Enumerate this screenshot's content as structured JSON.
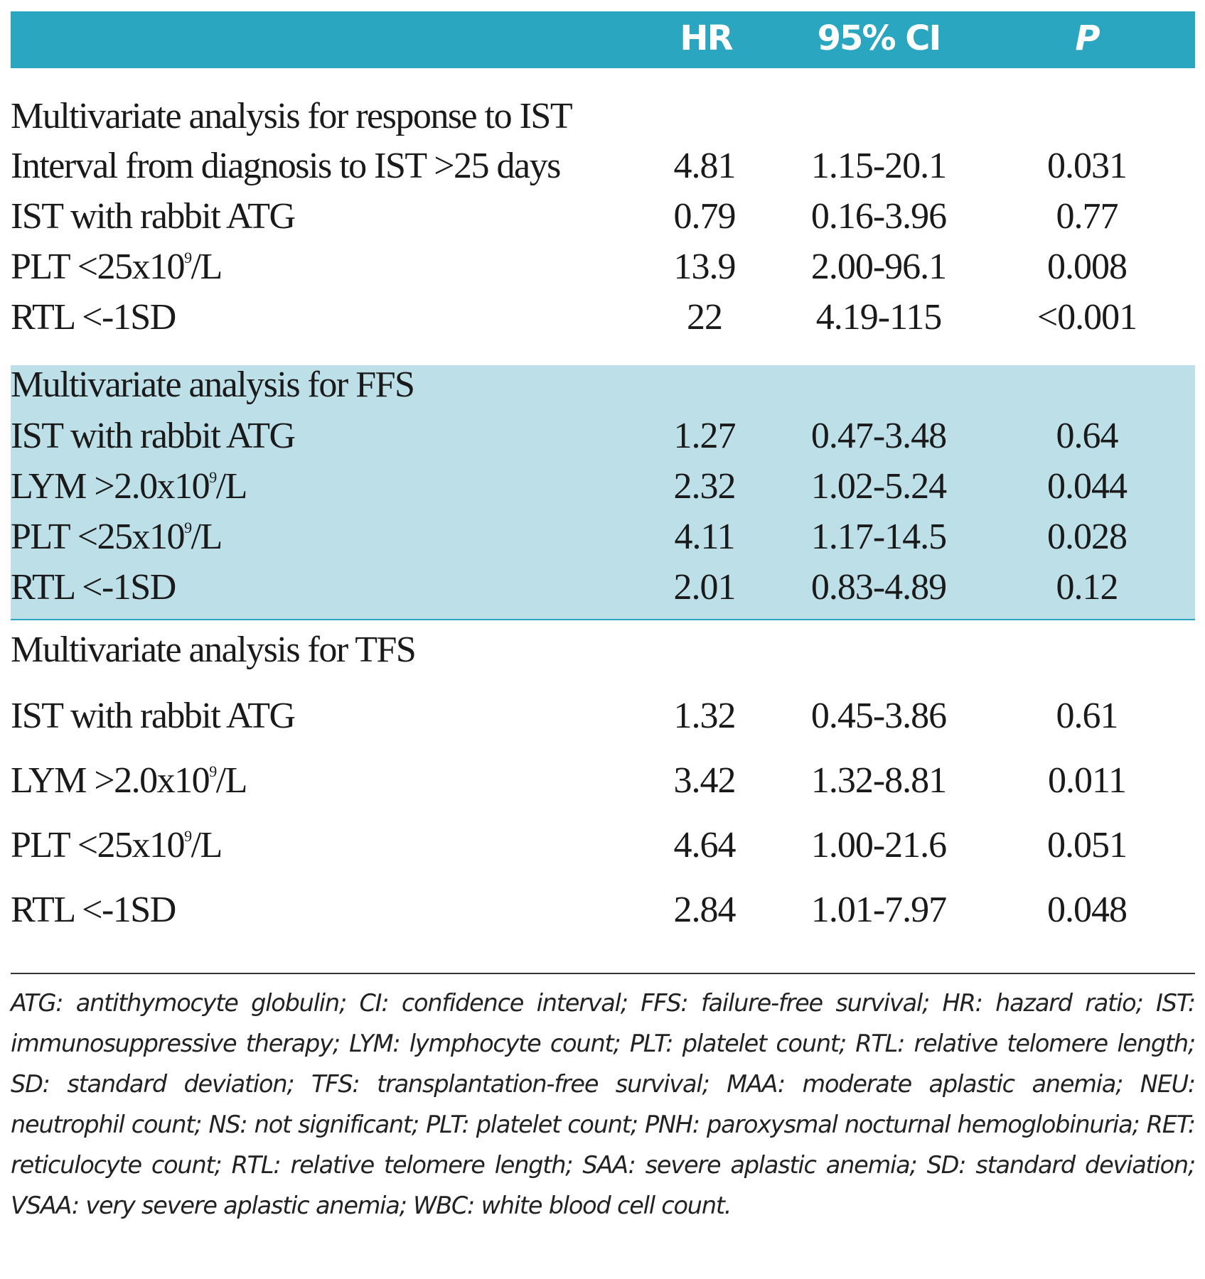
{
  "header": {
    "hr": "HR",
    "ci": "95% CI",
    "p": "P"
  },
  "sections": [
    {
      "title": "Multivariate analysis for response to IST",
      "rows": [
        {
          "pre": "Interval from diagnosis to IST >25 days",
          "sup": "",
          "post": "",
          "hr": "4.81",
          "ci": "1.15-20.1",
          "p": "0.031"
        },
        {
          "pre": "IST with rabbit ATG",
          "sup": "",
          "post": "",
          "hr": "0.79",
          "ci": "0.16-3.96",
          "p": "0.77"
        },
        {
          "pre": "PLT <25x10",
          "sup": "9",
          "post": "/L",
          "hr": "13.9",
          "ci": "2.00-96.1",
          "p": "0.008"
        },
        {
          "pre": "RTL <-1SD",
          "sup": "",
          "post": "",
          "hr": "22",
          "ci": "4.19-115",
          "p": "<0.001"
        }
      ]
    },
    {
      "title": "Multivariate analysis for FFS",
      "rows": [
        {
          "pre": "IST with rabbit ATG",
          "sup": "",
          "post": "",
          "hr": "1.27",
          "ci": "0.47-3.48",
          "p": "0.64"
        },
        {
          "pre": "LYM >2.0x10",
          "sup": "9",
          "post": "/L",
          "hr": "2.32",
          "ci": "1.02-5.24",
          "p": "0.044"
        },
        {
          "pre": "PLT <25x10",
          "sup": "9",
          "post": "/L",
          "hr": "4.11",
          "ci": "1.17-14.5",
          "p": "0.028"
        },
        {
          "pre": "RTL <-1SD",
          "sup": "",
          "post": "",
          "hr": "2.01",
          "ci": "0.83-4.89",
          "p": "0.12"
        }
      ]
    },
    {
      "title": "Multivariate analysis for TFS",
      "rows": [
        {
          "pre": "IST with rabbit ATG",
          "sup": "",
          "post": "",
          "hr": "1.32",
          "ci": "0.45-3.86",
          "p": "0.61"
        },
        {
          "pre": "LYM >2.0x10",
          "sup": "9",
          "post": "/L",
          "hr": "3.42",
          "ci": "1.32-8.81",
          "p": "0.011"
        },
        {
          "pre": "PLT <25x10",
          "sup": "9",
          "post": "/L",
          "hr": "4.64",
          "ci": "1.00-21.6",
          "p": "0.051"
        },
        {
          "pre": "RTL <-1SD",
          "sup": "",
          "post": "",
          "hr": "2.84",
          "ci": "1.01-7.97",
          "p": "0.048"
        }
      ]
    }
  ],
  "footnote": "ATG: antithymocyte globulin; CI: confidence interval; FFS: failure-free survival; HR: hazard ratio; IST: immunosuppressive therapy; LYM: lymphocyte count; PLT: platelet count; RTL: relative telomere length; SD: standard deviation; TFS: transplantation-free survival; MAA: moderate aplastic anemia; NEU: neutrophil count; NS: not significant; PLT: platelet count; PNH: paroxysmal nocturnal hemoglobinuria; RET: reticulocyte count; RTL: relative telomere length; SAA: severe aplastic anemia; SD: standard deviation; VSAA: very severe aplastic anemia; WBC: white blood cell count."
}
